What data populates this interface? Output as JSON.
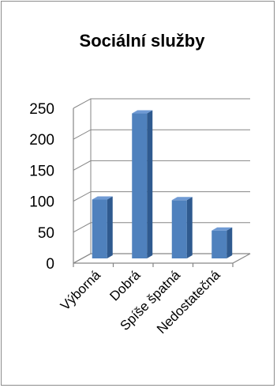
{
  "chart_data": {
    "type": "bar",
    "title": "Sociální služby",
    "categories": [
      "Výborná",
      "Dobrá",
      "Spíše špatná",
      "Nedostatečná"
    ],
    "values": [
      95,
      234,
      94,
      45
    ],
    "ylim": [
      0,
      250
    ],
    "yticks": [
      0,
      50,
      100,
      150,
      200,
      250
    ],
    "grid": true,
    "three_d": true,
    "bar_color": "#4f81bd",
    "bar_side_color": "#2f5a8f",
    "bar_top_color": "#6f9ad4"
  }
}
